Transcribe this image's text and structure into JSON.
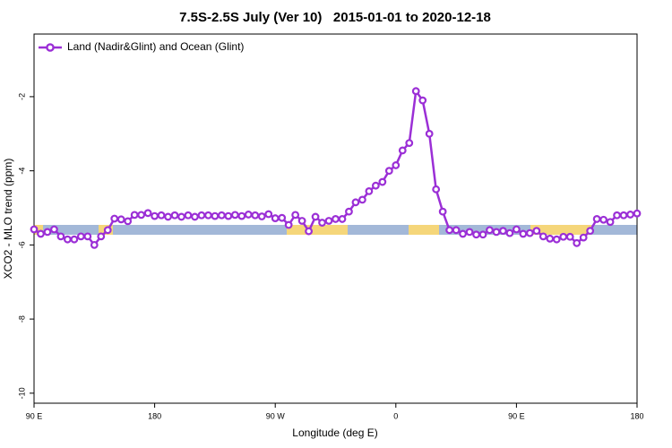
{
  "chart_data": {
    "type": "line",
    "title": "7.5S-2.5S July (Ver 10)   2015-01-01 to 2020-12-18",
    "x_label": "Longitude (deg E)",
    "y_label": "XCO2 - MLO trend (ppm)",
    "x": [
      90,
      95,
      100,
      105,
      110,
      115,
      120,
      125,
      130,
      135,
      140,
      145,
      150,
      155,
      160,
      165,
      170,
      175,
      180,
      185,
      190,
      195,
      200,
      205,
      210,
      215,
      220,
      225,
      230,
      235,
      240,
      245,
      250,
      255,
      260,
      265,
      270,
      275,
      280,
      285,
      290,
      295,
      300,
      305,
      310,
      315,
      320,
      325,
      330,
      335,
      340,
      345,
      350,
      355,
      360,
      365,
      370,
      375,
      380,
      385,
      390,
      395,
      400,
      405,
      410,
      415,
      420,
      425,
      430,
      435,
      440,
      445,
      450,
      455,
      460,
      465,
      470,
      475,
      480,
      485,
      490,
      495,
      500,
      505,
      510,
      515,
      520,
      525,
      530,
      535,
      540
    ],
    "series": [
      {
        "name": "Land (Nadir&Glint) and Ocean (Glint)",
        "color": "#9b2fd6",
        "values": [
          -5.58,
          -5.7,
          -5.65,
          -5.58,
          -5.77,
          -5.85,
          -5.85,
          -5.77,
          -5.77,
          -6.0,
          -5.77,
          -5.6,
          -5.29,
          -5.31,
          -5.36,
          -5.19,
          -5.19,
          -5.14,
          -5.22,
          -5.2,
          -5.24,
          -5.2,
          -5.24,
          -5.2,
          -5.24,
          -5.2,
          -5.2,
          -5.22,
          -5.2,
          -5.22,
          -5.19,
          -5.22,
          -5.18,
          -5.2,
          -5.23,
          -5.17,
          -5.28,
          -5.27,
          -5.46,
          -5.19,
          -5.35,
          -5.63,
          -5.24,
          -5.4,
          -5.35,
          -5.3,
          -5.3,
          -5.1,
          -4.85,
          -4.78,
          -4.55,
          -4.4,
          -4.3,
          -4.0,
          -3.85,
          -3.45,
          -3.25,
          -1.85,
          -2.1,
          -3.0,
          -4.5,
          -5.1,
          -5.6,
          -5.6,
          -5.7,
          -5.65,
          -5.72,
          -5.72,
          -5.6,
          -5.65,
          -5.62,
          -5.68,
          -5.58,
          -5.7,
          -5.68,
          -5.62,
          -5.77,
          -5.83,
          -5.85,
          -5.78,
          -5.78,
          -5.95,
          -5.8,
          -5.62,
          -5.3,
          -5.32,
          -5.38,
          -5.2,
          -5.2,
          -5.18,
          -5.15
        ]
      }
    ],
    "xlim": [
      90,
      540
    ],
    "xticks": [
      {
        "value": 90,
        "label": "90 E"
      },
      180,
      {
        "value": 270,
        "label": "90 W"
      },
      {
        "value": 360,
        "label": "0"
      },
      {
        "value": 450,
        "label": "90 E"
      },
      {
        "value": 540,
        "label": "180"
      }
    ],
    "ylim": [
      -10.27,
      -0.31
    ],
    "yticks": [
      -2,
      -4,
      -6,
      -8,
      -10
    ],
    "legend": "top-left"
  }
}
